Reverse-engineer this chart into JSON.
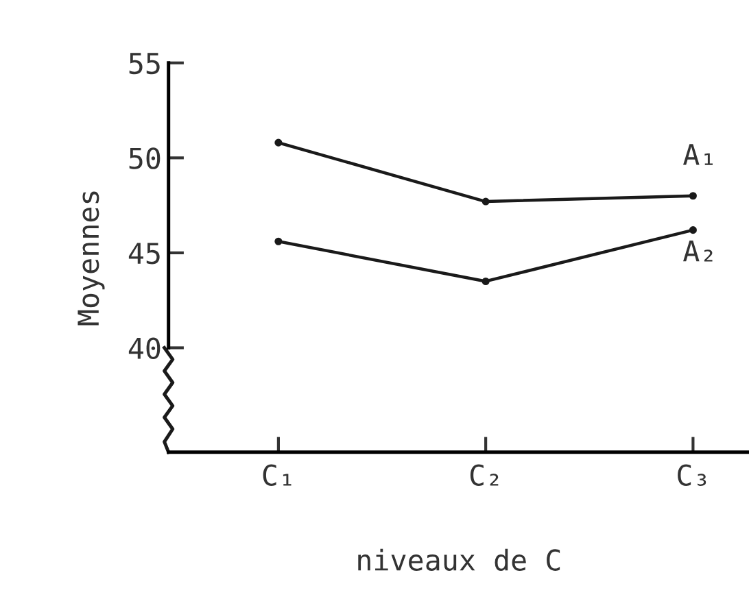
{
  "chart_data": {
    "type": "line",
    "xlabel": "niveaux de C",
    "ylabel": "Moyennes",
    "categories": [
      "C₁",
      "C₂",
      "C₃"
    ],
    "series": [
      {
        "name": "A₁",
        "color": "#1a1a1a",
        "values": [
          50.8,
          47.7,
          48.0
        ]
      },
      {
        "name": "A₂",
        "color": "#1a1a1a",
        "values": [
          45.6,
          43.5,
          46.2
        ]
      }
    ],
    "ylim": [
      34.5,
      55
    ],
    "yticks": [
      40,
      45,
      50,
      55
    ],
    "marker": "circle",
    "line_style": "solid",
    "grid": false,
    "legend": false
  }
}
